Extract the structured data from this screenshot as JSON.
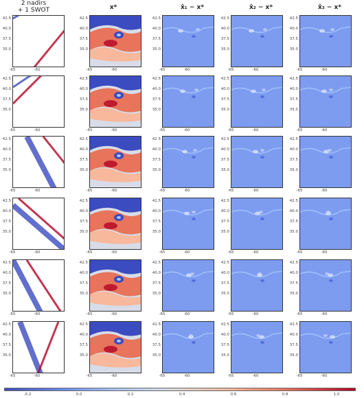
{
  "headers": {
    "col0": "2 nadirs\n+ 1 SWOT",
    "col1": "x*",
    "col2": "x̂₁ − x*",
    "col3": "x̂₂ − x*",
    "col4": "x̂₃ − x*"
  },
  "row_labels_note": "",
  "yticks": [
    "42.5",
    "40.0",
    "37.5",
    "35.0"
  ],
  "xticks": [
    "-65",
    "-60"
  ],
  "colorbar_ticks": [
    "-0.2",
    "0.0",
    "0.2",
    "0.4",
    "0.6",
    "0.8",
    "1.0"
  ],
  "colors": {
    "cool": "#3b4cc0",
    "mid": "#dddddd",
    "warm": "#b40426",
    "diff_bg": "#6f92f3"
  }
}
